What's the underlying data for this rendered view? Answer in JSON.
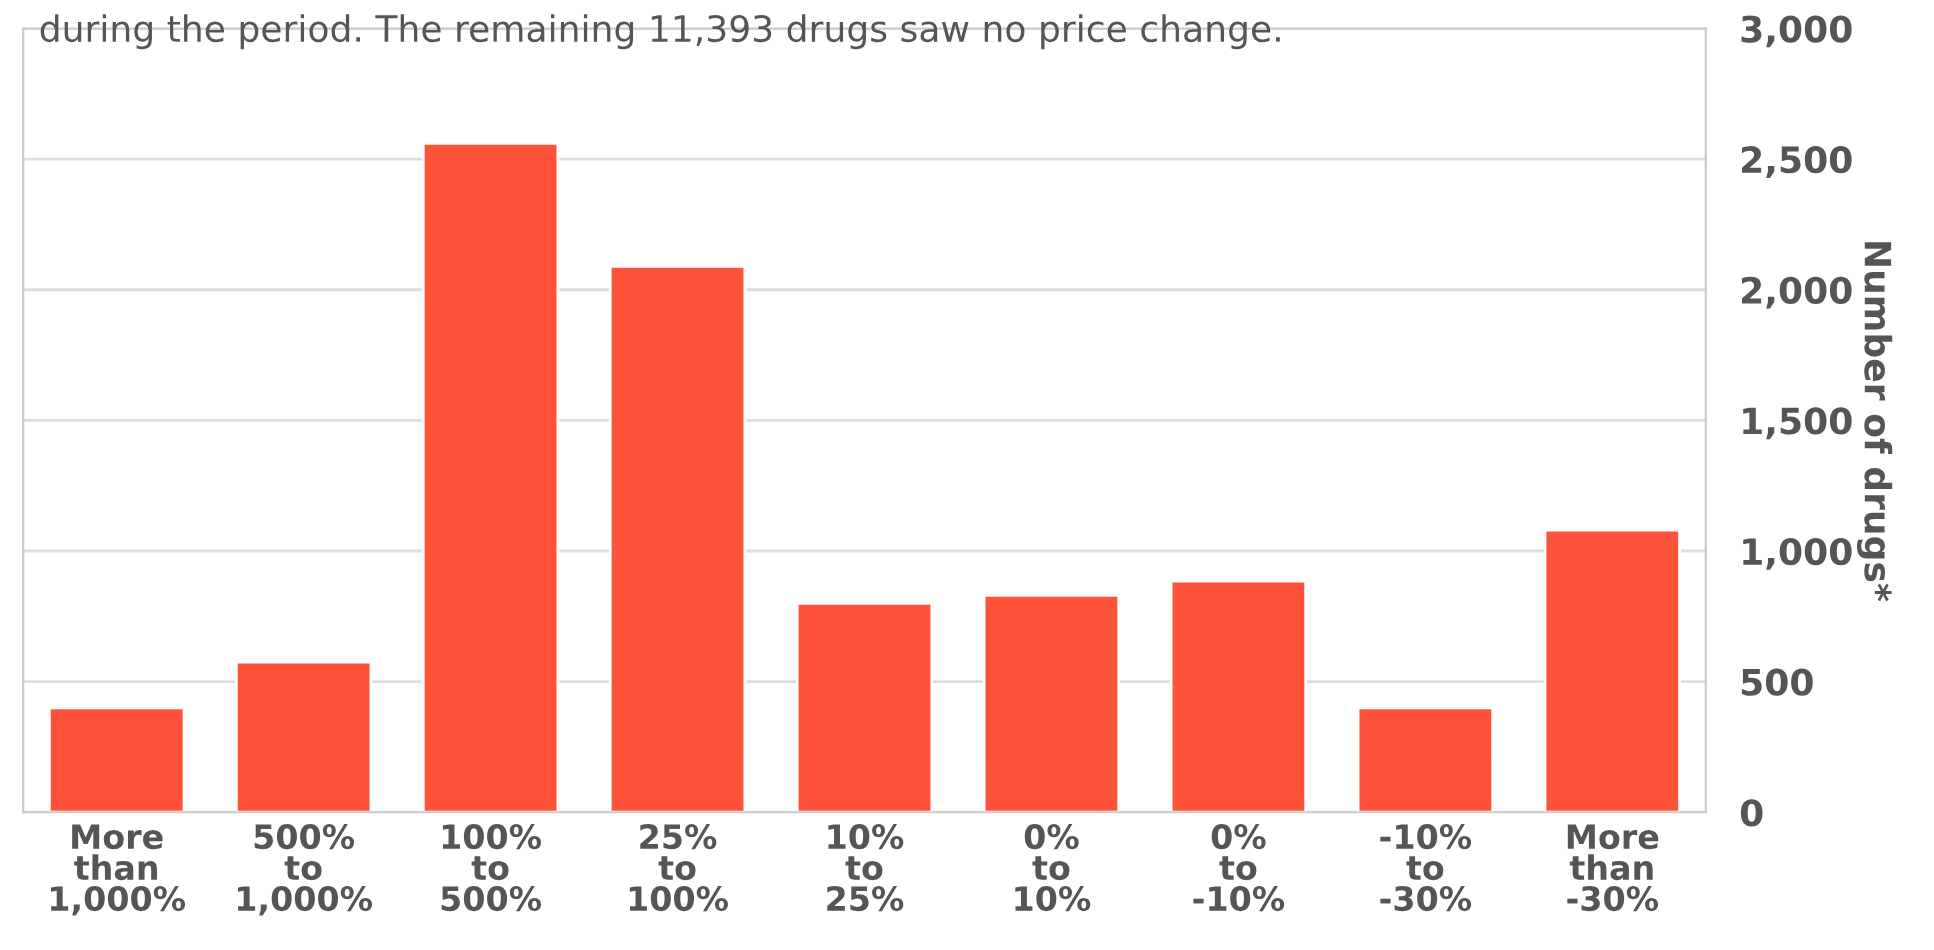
{
  "chart_data": {
    "type": "bar",
    "title": "during the period. The remaining 11,393 drugs saw no price change.",
    "categories": [
      "More\nthan\n1,000%",
      "500%\nto\n1,000%",
      "100%\nto\n500%",
      "25%\nto\n100%",
      "10%\nto\n25%",
      "0%\nto\n10%",
      "0%\nto\n-10%",
      "-10%\nto\n-30%",
      "More\nthan\n-30%"
    ],
    "values": [
      400,
      575,
      2560,
      2090,
      800,
      830,
      885,
      400,
      1080
    ],
    "color": "#ff523b",
    "ylabel": "Number of drugs*",
    "ylim": [
      0,
      3000
    ],
    "yticks": [
      {
        "value": 0,
        "label": "0"
      },
      {
        "value": 500,
        "label": "500"
      },
      {
        "value": 1000,
        "label": "1,000"
      },
      {
        "value": 1500,
        "label": "1,500"
      },
      {
        "value": 2000,
        "label": "2,000"
      },
      {
        "value": 2500,
        "label": "2,500"
      },
      {
        "value": 3000,
        "label": "3,000"
      }
    ],
    "grid": "y"
  }
}
